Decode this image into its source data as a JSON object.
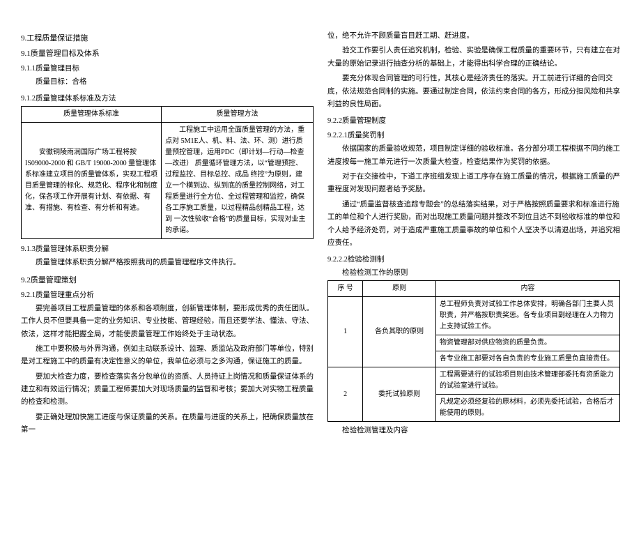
{
  "left": {
    "h1": "9.工程质量保证措施",
    "h2": "9.1质量管理目标及体系",
    "h3_1": "9.1.1质量管理目标",
    "goal": "质量目标：合格",
    "h3_2": "9.1.2质量管理体系标准及方法",
    "tbl1": {
      "head": [
        "质量管理体系标准",
        "质量管理方法"
      ],
      "row": [
        "　　安徽铜陵雨润国际广场工程将按 IS09000-2000 和  GB/T 19000-2000 量管理体系标准建立项目的质量管体系，实现工程项目质量管理的标化、规范化、程序化和制度化，保各项工作开展有计划、有依据、有准、有措施、有检查、有分析和有进。",
        "　　工程施工中运用全面质量管理的方法，重点对 5M1E人、机、料、法、环、测）进行质量预控管理，运用PDC（即计划—行动—检查—改进） 质量循环管理方法，以“管理预控、过程监控、目标总控、成品 终控”为原则，建立一个横到边、纵到底的质量控制网络，对工程质量进行全方位、全过程管理和监控，确保各工序施工质量，以过程精品创精品工程，达到 一次性验收“合格”的质量目标，实现对业主的承诺。"
      ]
    },
    "h3_3": "9.1.3质量管理体系职责分解",
    "p1": "质量管理体系职责分解严格按照我司的质量管理程序文件执行。",
    "h2b": "9.2质量管理策划",
    "h3_4": "9.2.1质量管理重点分析",
    "p2": "要完善项目工程质量管理的体系和各项制度，创新管理体制，要形成优秀的责任团队。工作人员不但要具备一定的业务知识、专业技能、管理经验，而且还要学法、懂法、守法、依法，这样才能把握全局，才能使质量管理工作始终处于主动状态。",
    "p3": "施工中要积极与外界沟通，例如主动联系设计、监理、质监站及政府部门等单位，特别是对工程施工中的质量有决定性意义的单位，我单位必须与之多沟通，保证施工的质量。",
    "p4": "要加大检查力度，要检查落实各分包单位的资质、人员持证上岗情况和质量保证体系的建立和有效运行情况；质量工程师要加大对现场质量的监督和考核；要加大对实物工程质量的检查和检测。",
    "p5": "要正确处理加快施工进度与保证质量的关系。在质量与进度的关系上，把确保质量放在第一"
  },
  "right": {
    "p1": "位，绝不允许不顾质量盲目赶工期、赶进度。",
    "p2": "验交工作要引人责任追究机制，检验、实验是确保工程质量的重要环节，只有建立在对大量的原始记录进行抽查分析的基础上，才能得出科学合理的正确结论。",
    "p3": "要充分体现合同管理的可行性，其核心是经济责任的落实。开工前进行详细的合同交底，依法规范合同制的实施。要通过制定合同，依法约束合同的各方，形成分担风险和共享利益的良性局面。",
    "h3_1": "9.2.2质量管理制度",
    "h3_2": "9.2.2.1质量奖罚制",
    "p4": "依据国家的质量验收规范，项目制定详细的验收标准。各分部分项工程根据不同的施工进度按每一施工单元进行一次质量大检查，检查结果作为奖罚的依据。",
    "p5": "对于在交接检中，下道工序班组发现上道工序存在施工质量的情况，根据施工质量的严重程度对发现问题者给予奖励。",
    "p6": "通过“质量监督核查追踪专题会”的总结落实结果，对于严格按照质量要求和标准进行施工的单位和个人进行奖励，而对出现施工质量问题并整改不到位且达不到验收标准的单位和个人给予经济处罚，对于造成严重施工质量事故的单位和个人坚决予以清退出场，并追究相应责任。",
    "h3_3": "9.2.2.2检验检测制",
    "caption1": "检验检测工作的原则",
    "tbl2": {
      "head": [
        "序 号",
        "原则",
        "内容"
      ],
      "rows": [
        {
          "num": "1",
          "principle": "各负其职的原则",
          "items": [
            "总工程师负责对试验工作总体安排，明确各部门主要人员职责，并严格按职责奖惩。各专业项目副经理在人力物力上支持试验工作。",
            "物资管理部对供应物资的质量负责。",
            "各专业施工部要对各自负责的专业施工质量负直接责任。"
          ]
        },
        {
          "num": "2",
          "principle": "委托试验原则",
          "items": [
            "工程需要进行的试验项目则由技术管理部委托有资质能力的试验室进行试验。",
            "凡规定必须经复验的原材料，必须先委托试验，合格后才能使用的原则。"
          ]
        }
      ]
    },
    "caption2": "检验检测管理及内容"
  }
}
